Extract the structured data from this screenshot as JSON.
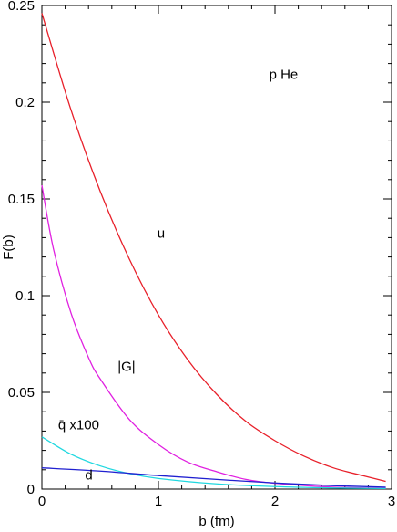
{
  "chart_data": {
    "type": "line",
    "title": "",
    "xlabel": "b (fm)",
    "ylabel": "F(b)",
    "xlim": [
      0,
      3
    ],
    "ylim": [
      0,
      0.25
    ],
    "grid": false,
    "x_ticks": [
      {
        "value": 0,
        "label": "0"
      },
      {
        "value": 1,
        "label": "1"
      },
      {
        "value": 2,
        "label": "2"
      },
      {
        "value": 3,
        "label": "3"
      }
    ],
    "y_ticks": [
      {
        "value": 0,
        "label": "0"
      },
      {
        "value": 0.05,
        "label": "0.05"
      },
      {
        "value": 0.1,
        "label": "0.1"
      },
      {
        "value": 0.15,
        "label": "0.15"
      },
      {
        "value": 0.2,
        "label": "0.2"
      },
      {
        "value": 0.25,
        "label": "0.25"
      }
    ],
    "series": [
      {
        "name": "u",
        "color": "#e8202a",
        "x": [
          0,
          0.25,
          0.5,
          0.75,
          1.0,
          1.25,
          1.5,
          1.75,
          2.0,
          2.25,
          2.5,
          2.75,
          2.95
        ],
        "y": [
          0.246,
          0.196,
          0.154,
          0.119,
          0.09,
          0.067,
          0.049,
          0.035,
          0.025,
          0.017,
          0.011,
          0.007,
          0.004
        ]
      },
      {
        "name": "|G|",
        "color": "#e020e0",
        "x": [
          0,
          0.1,
          0.25,
          0.4,
          0.5,
          0.75,
          1.0,
          1.25,
          1.5,
          1.75,
          2.0,
          2.5,
          2.95
        ],
        "y": [
          0.157,
          0.124,
          0.091,
          0.068,
          0.057,
          0.036,
          0.023,
          0.014,
          0.009,
          0.005,
          0.003,
          0.001,
          0.0005
        ]
      },
      {
        "name": "q̄ x100",
        "color": "#20d8e0",
        "x": [
          0,
          0.25,
          0.5,
          0.75,
          1.0,
          1.5,
          2.0,
          2.5,
          2.95
        ],
        "y": [
          0.027,
          0.018,
          0.012,
          0.008,
          0.0055,
          0.0027,
          0.0013,
          0.0006,
          0.0003
        ]
      },
      {
        "name": "d",
        "color": "#2020d0",
        "x": [
          0,
          0.5,
          1.0,
          1.5,
          2.0,
          2.5,
          2.95
        ],
        "y": [
          0.011,
          0.0093,
          0.007,
          0.005,
          0.0032,
          0.0018,
          0.001
        ]
      }
    ],
    "annotations": [
      {
        "text": "p  He",
        "x": 1.95,
        "y": 0.212
      },
      {
        "text": "u",
        "x": 0.99,
        "y": 0.13
      },
      {
        "text": "|G|",
        "x": 0.65,
        "y": 0.061
      },
      {
        "text": "q̄ x100",
        "x": 0.14,
        "y": 0.031
      },
      {
        "text": "d",
        "x": 0.37,
        "y": 0.005
      }
    ]
  }
}
